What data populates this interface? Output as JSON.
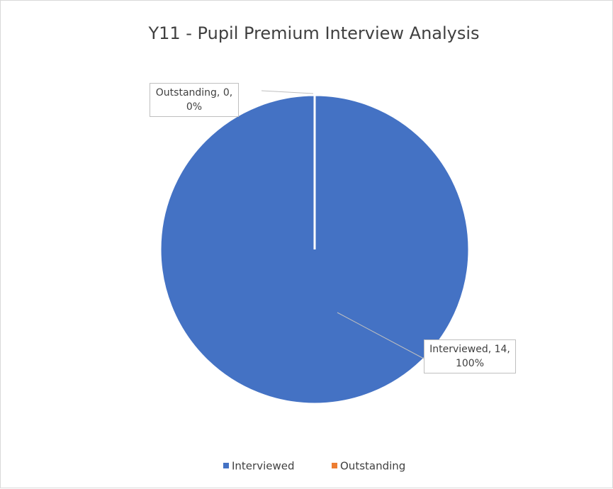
{
  "chart_data": {
    "type": "pie",
    "title": "Y11 - Pupil Premium Interview Analysis",
    "categories": [
      "Interviewed",
      "Outstanding"
    ],
    "values": [
      14,
      0
    ],
    "value_labels": [
      "Interviewed, 14, 100%",
      "Outstanding, 0, 0%"
    ],
    "colors": [
      "#4472c4",
      "#ed7d31"
    ],
    "legend": "bottom"
  }
}
